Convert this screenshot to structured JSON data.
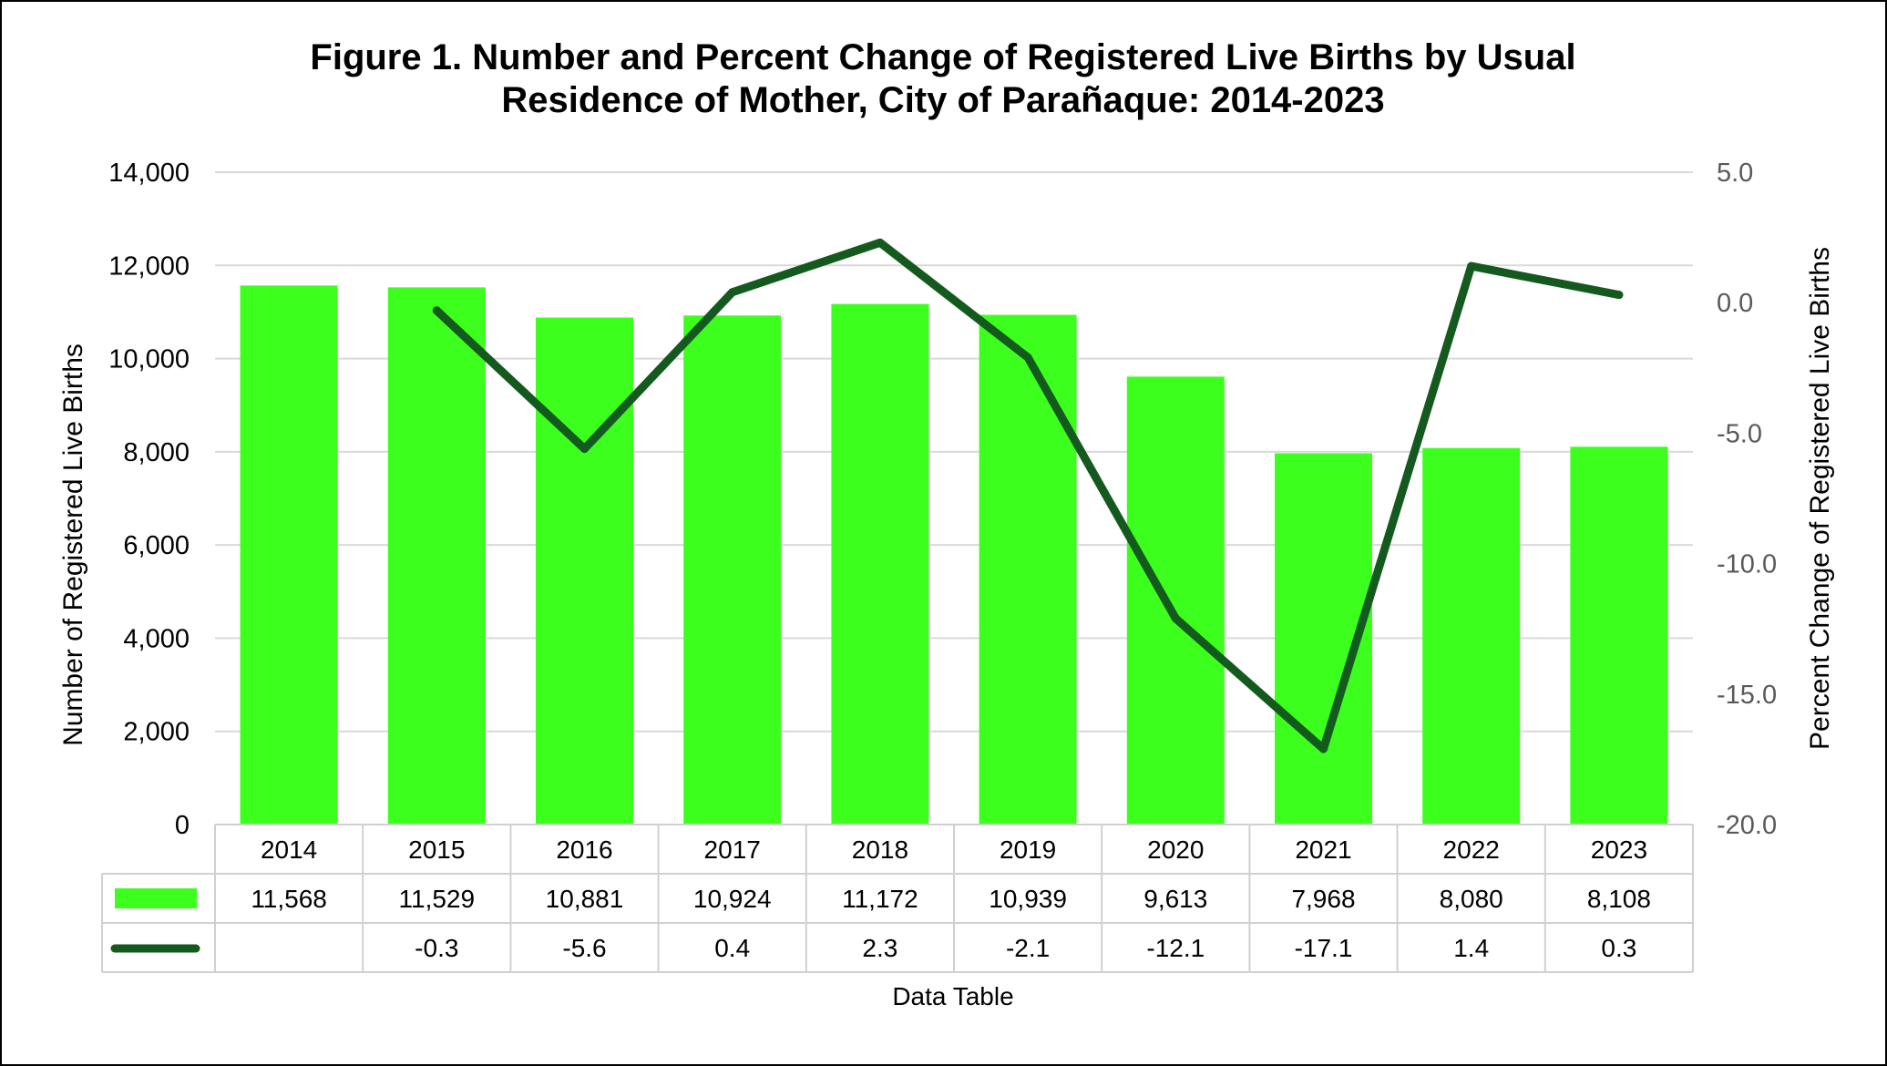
{
  "chart_data": {
    "type": "bar",
    "title_lines": [
      "Figure 1. Number and Percent Change of Registered Live Births by Usual",
      "Residence of Mother, City of Parañaque: 2014-2023"
    ],
    "categories": [
      "2014",
      "2015",
      "2016",
      "2017",
      "2018",
      "2019",
      "2020",
      "2021",
      "2022",
      "2023"
    ],
    "series": [
      {
        "type": "bar",
        "axis": "left",
        "color": "#3cff1e",
        "values": [
          11568,
          11529,
          10881,
          10924,
          11172,
          10939,
          9613,
          7968,
          8080,
          8108
        ],
        "labels": [
          "11,568",
          "11,529",
          "10,881",
          "10,924",
          "11,172",
          "10,939",
          "9,613",
          "7,968",
          "8,080",
          "8,108"
        ]
      },
      {
        "type": "line",
        "axis": "right",
        "color": "#145a1e",
        "values": [
          null,
          -0.3,
          -5.6,
          0.4,
          2.3,
          -2.1,
          -12.1,
          -17.1,
          1.4,
          0.3
        ],
        "labels": [
          "",
          "-0.3",
          "-5.6",
          "0.4",
          "2.3",
          "-2.1",
          "-12.1",
          "-17.1",
          "1.4",
          "0.3"
        ]
      }
    ],
    "ylabel": "Number of Registered Live Births",
    "ylim": [
      0,
      14000
    ],
    "yticks": [
      0,
      2000,
      4000,
      6000,
      8000,
      10000,
      12000,
      14000
    ],
    "ytick_labels": [
      "0",
      "2,000",
      "4,000",
      "6,000",
      "8,000",
      "10,000",
      "12,000",
      "14,000"
    ],
    "y2label": "Percent Change of Registered Live Births",
    "y2lim": [
      -20,
      5
    ],
    "y2ticks": [
      -20,
      -15,
      -10,
      -5,
      0,
      5
    ],
    "y2tick_labels": [
      "-20.0",
      "-15.0",
      "-10.0",
      "-5.0",
      "0.0",
      "5.0"
    ],
    "xlabel": "Data Table",
    "grid": true,
    "data_table": true
  }
}
